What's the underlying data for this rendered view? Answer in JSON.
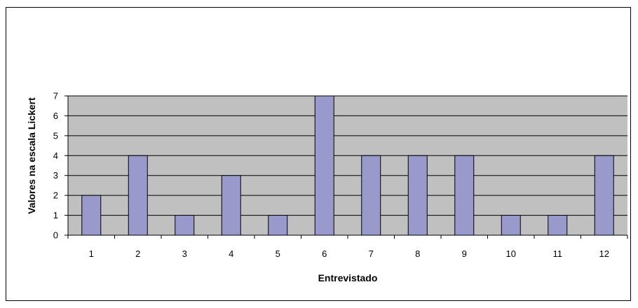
{
  "chart_data": {
    "type": "bar",
    "title": "",
    "xlabel": "Entrevistado",
    "ylabel": "Valores na escala Lickert",
    "categories": [
      "1",
      "2",
      "3",
      "4",
      "5",
      "6",
      "7",
      "8",
      "9",
      "10",
      "11",
      "12"
    ],
    "values": [
      2,
      4,
      1,
      3,
      1,
      7,
      4,
      4,
      4,
      1,
      1,
      4
    ],
    "ylim": [
      0,
      7
    ],
    "yticks": [
      0,
      1,
      2,
      3,
      4,
      5,
      6,
      7
    ],
    "grid": true,
    "legend": "none",
    "colors": {
      "bar_fill": "#9999cc",
      "bar_stroke": "#000000",
      "plot_background": "#c0c0c0",
      "gridline": "#000000"
    }
  }
}
